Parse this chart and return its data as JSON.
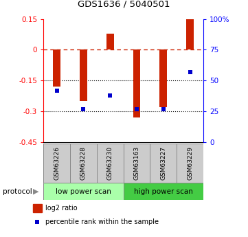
{
  "title": "GDS1636 / 5040501",
  "samples": [
    "GSM63226",
    "GSM63228",
    "GSM63230",
    "GSM63163",
    "GSM63227",
    "GSM63229"
  ],
  "log2_ratio": [
    -0.18,
    -0.25,
    0.08,
    -0.33,
    -0.28,
    0.15
  ],
  "percentile_rank": [
    42,
    27,
    38,
    27,
    27,
    57
  ],
  "groups": [
    {
      "label": "low power scan",
      "color": "#aaffaa",
      "indices": [
        0,
        1,
        2
      ]
    },
    {
      "label": "high power scan",
      "color": "#44cc44",
      "indices": [
        3,
        4,
        5
      ]
    }
  ],
  "ylim": [
    -0.45,
    0.15
  ],
  "yticks_left": [
    0.15,
    0,
    -0.15,
    -0.3,
    -0.45
  ],
  "yticks_right_pct": [
    100,
    75,
    50,
    25,
    0
  ],
  "bar_color": "#cc2200",
  "dot_color": "#0000cc",
  "dashed_line_color": "#cc2200",
  "background_color": "#ffffff",
  "protocol_label": "protocol",
  "legend_bar": "log2 ratio",
  "legend_dot": "percentile rank within the sample",
  "bar_width": 0.28,
  "figsize": [
    3.61,
    3.45
  ],
  "dpi": 100
}
